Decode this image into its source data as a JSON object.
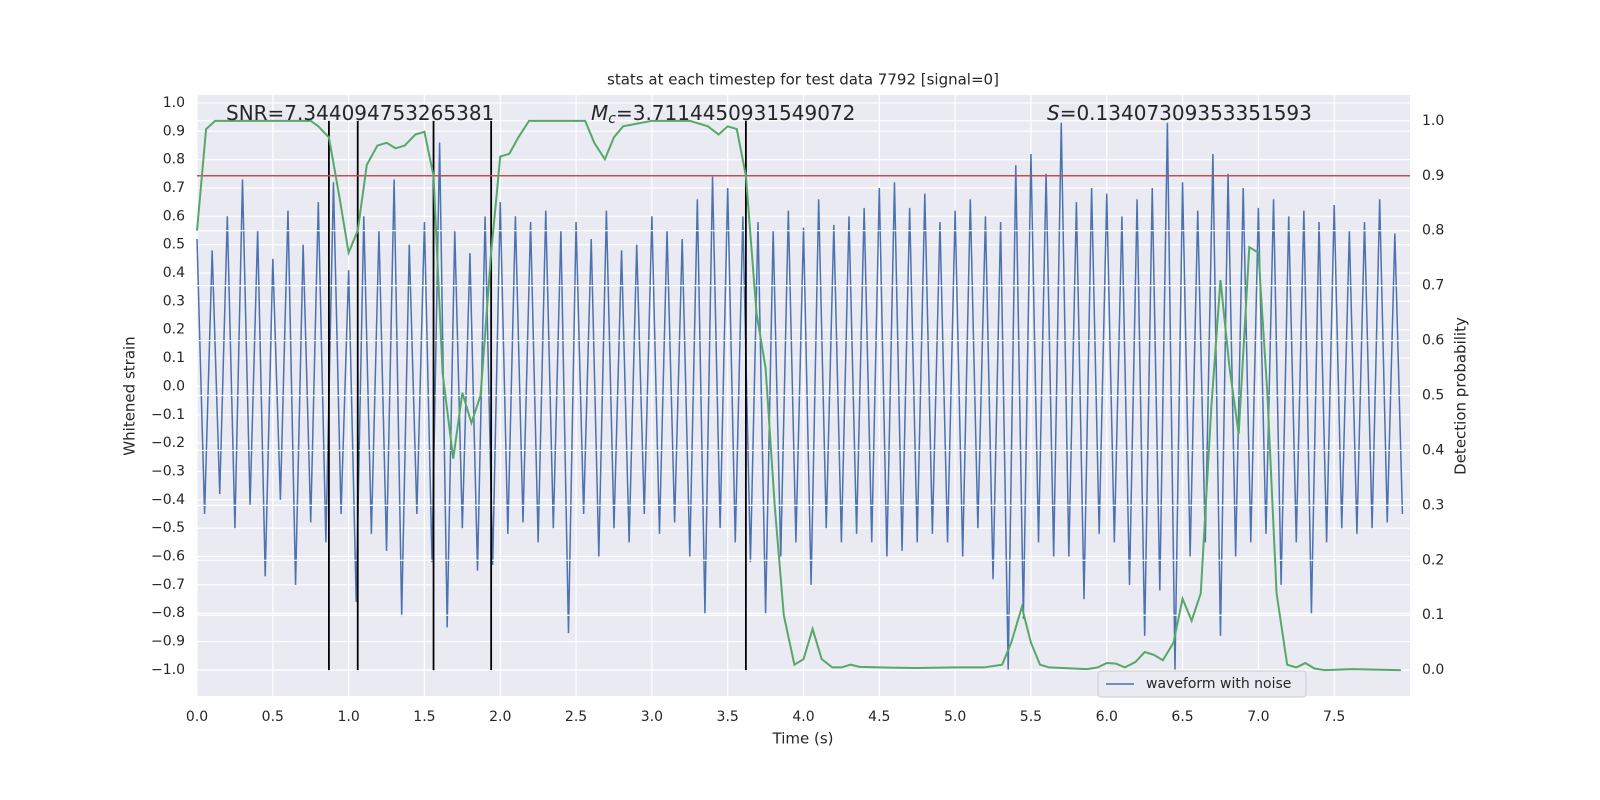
{
  "chart_data": {
    "type": "line",
    "title": "stats at each timestep for test data 7792 [signal=0]",
    "xlabel": "Time (s)",
    "ylabel": "Whitened strain",
    "y2label": "Detection probability",
    "annotations": [
      {
        "text": "SNR=7.344094753265381"
      },
      {
        "symbol": "M",
        "subscript": "c",
        "text": "=3.7114450931549072"
      },
      {
        "symbol": "S",
        "text": "=0.13407309353351593"
      }
    ],
    "xlim": [
      0,
      8.0
    ],
    "ylim": [
      -1.092,
      1.028
    ],
    "y2lim": [
      -0.047,
      1.047
    ],
    "xticks": [
      {
        "value": 0,
        "label": "0.0"
      },
      {
        "value": 0.5,
        "label": "0.5"
      },
      {
        "value": 1,
        "label": "1.0"
      },
      {
        "value": 1.5,
        "label": "1.5"
      },
      {
        "value": 2,
        "label": "2.0"
      },
      {
        "value": 2.5,
        "label": "2.5"
      },
      {
        "value": 3,
        "label": "3.0"
      },
      {
        "value": 3.5,
        "label": "3.5"
      },
      {
        "value": 4,
        "label": "4.0"
      },
      {
        "value": 4.5,
        "label": "4.5"
      },
      {
        "value": 5,
        "label": "5.0"
      },
      {
        "value": 5.5,
        "label": "5.5"
      },
      {
        "value": 6,
        "label": "6.0"
      },
      {
        "value": 6.5,
        "label": "6.5"
      },
      {
        "value": 7,
        "label": "7.0"
      },
      {
        "value": 7.5,
        "label": "7.5"
      }
    ],
    "yticks": [
      {
        "value": -1,
        "label": "−1.0"
      },
      {
        "value": -0.9,
        "label": "−0.9"
      },
      {
        "value": -0.8,
        "label": "−0.8"
      },
      {
        "value": -0.7,
        "label": "−0.7"
      },
      {
        "value": -0.6,
        "label": "−0.6"
      },
      {
        "value": -0.5,
        "label": "−0.5"
      },
      {
        "value": -0.4,
        "label": "−0.4"
      },
      {
        "value": -0.3,
        "label": "−0.3"
      },
      {
        "value": -0.2,
        "label": "−0.2"
      },
      {
        "value": -0.1,
        "label": "−0.1"
      },
      {
        "value": 0,
        "label": "0.0"
      },
      {
        "value": 0.1,
        "label": "0.1"
      },
      {
        "value": 0.2,
        "label": "0.2"
      },
      {
        "value": 0.3,
        "label": "0.3"
      },
      {
        "value": 0.4,
        "label": "0.4"
      },
      {
        "value": 0.5,
        "label": "0.5"
      },
      {
        "value": 0.6,
        "label": "0.6"
      },
      {
        "value": 0.7,
        "label": "0.7"
      },
      {
        "value": 0.8,
        "label": "0.8"
      },
      {
        "value": 0.9,
        "label": "0.9"
      },
      {
        "value": 1,
        "label": "1.0"
      }
    ],
    "y2ticks": [
      {
        "value": 0,
        "label": "0.0"
      },
      {
        "value": 0.1,
        "label": "0.1"
      },
      {
        "value": 0.2,
        "label": "0.2"
      },
      {
        "value": 0.3,
        "label": "0.3"
      },
      {
        "value": 0.4,
        "label": "0.4"
      },
      {
        "value": 0.5,
        "label": "0.5"
      },
      {
        "value": 0.6,
        "label": "0.6"
      },
      {
        "value": 0.7,
        "label": "0.7"
      },
      {
        "value": 0.8,
        "label": "0.8"
      },
      {
        "value": 0.9,
        "label": "0.9"
      },
      {
        "value": 1,
        "label": "1.0"
      }
    ],
    "grid": true,
    "legend": "lower right",
    "threshold": 0.9,
    "threshold_color": "#c44e52",
    "vlines": [
      0.87,
      1.06,
      1.56,
      1.94,
      3.62
    ],
    "vline_color": "#000000",
    "series": [
      {
        "name": "waveform with noise",
        "color": "#4c72b0",
        "x": [
          0,
          0.05,
          0.1,
          0.15,
          0.2,
          0.25,
          0.3,
          0.35,
          0.4,
          0.45,
          0.5,
          0.55,
          0.6,
          0.65,
          0.7,
          0.75,
          0.8,
          0.85,
          0.9,
          0.95,
          1,
          1.05,
          1.1,
          1.15,
          1.2,
          1.25,
          1.3,
          1.35,
          1.4,
          1.45,
          1.5,
          1.55,
          1.6,
          1.65,
          1.7,
          1.75,
          1.8,
          1.85,
          1.9,
          1.95,
          2,
          2.05,
          2.1,
          2.15,
          2.2,
          2.25,
          2.3,
          2.35,
          2.4,
          2.45,
          2.5,
          2.55,
          2.6,
          2.65,
          2.7,
          2.75,
          2.8,
          2.85,
          2.9,
          2.95,
          3,
          3.05,
          3.1,
          3.15,
          3.2,
          3.25,
          3.3,
          3.35,
          3.4,
          3.45,
          3.5,
          3.55,
          3.6,
          3.65,
          3.7,
          3.75,
          3.8,
          3.85,
          3.9,
          3.95,
          4,
          4.05,
          4.1,
          4.15,
          4.2,
          4.25,
          4.3,
          4.35,
          4.4,
          4.45,
          4.5,
          4.55,
          4.6,
          4.65,
          4.7,
          4.75,
          4.8,
          4.85,
          4.9,
          4.95,
          5,
          5.05,
          5.1,
          5.15,
          5.2,
          5.25,
          5.3,
          5.35,
          5.4,
          5.45,
          5.5,
          5.55,
          5.6,
          5.65,
          5.7,
          5.75,
          5.8,
          5.85,
          5.9,
          5.95,
          6,
          6.05,
          6.1,
          6.15,
          6.2,
          6.25,
          6.3,
          6.35,
          6.4,
          6.45,
          6.5,
          6.55,
          6.6,
          6.65,
          6.7,
          6.75,
          6.8,
          6.85,
          6.9,
          6.95,
          7,
          7.05,
          7.1,
          7.15,
          7.2,
          7.25,
          7.3,
          7.35,
          7.4,
          7.45,
          7.5,
          7.55,
          7.6,
          7.65,
          7.7,
          7.75,
          7.8,
          7.85,
          7.9,
          7.95
        ],
        "values": [
          0.52,
          -0.45,
          0.48,
          -0.38,
          0.6,
          -0.5,
          0.73,
          -0.42,
          0.55,
          -0.67,
          0.45,
          -0.4,
          0.62,
          -0.7,
          0.5,
          -0.48,
          0.65,
          -0.55,
          0.72,
          -0.45,
          0.41,
          -0.76,
          0.6,
          -0.52,
          0.55,
          -0.58,
          0.73,
          -0.81,
          0.5,
          -0.45,
          0.58,
          -0.62,
          0.86,
          -0.85,
          0.55,
          -0.5,
          0.47,
          -0.65,
          0.6,
          -0.63,
          0.65,
          -0.52,
          0.6,
          -0.48,
          0.58,
          -0.55,
          0.62,
          -0.5,
          0.55,
          -0.87,
          0.58,
          -0.45,
          0.52,
          -0.6,
          0.62,
          -0.5,
          0.48,
          -0.55,
          0.5,
          -0.45,
          0.6,
          -0.52,
          0.55,
          -0.48,
          0.52,
          -0.6,
          0.66,
          -0.8,
          0.74,
          -0.5,
          0.7,
          -0.55,
          0.6,
          -0.62,
          0.58,
          -0.8,
          0.55,
          -0.6,
          0.62,
          -0.55,
          0.56,
          -0.7,
          0.66,
          -0.5,
          0.57,
          -0.55,
          0.6,
          -0.52,
          0.63,
          -0.55,
          0.7,
          -0.6,
          0.72,
          -0.58,
          0.63,
          -0.55,
          0.68,
          -0.52,
          0.58,
          -0.55,
          0.62,
          -0.6,
          0.66,
          -0.5,
          0.6,
          -0.68,
          0.58,
          -1.0,
          0.78,
          -0.82,
          0.82,
          -0.55,
          0.75,
          -0.6,
          0.93,
          -0.6,
          0.65,
          -0.75,
          0.7,
          -0.52,
          0.68,
          -0.55,
          0.6,
          -0.7,
          0.66,
          -0.88,
          0.7,
          -0.72,
          0.93,
          -1.0,
          0.72,
          -0.6,
          0.62,
          -0.55,
          0.82,
          -0.88,
          0.75,
          -0.6,
          0.7,
          -0.55,
          0.63,
          -0.52,
          0.66,
          -0.7,
          0.6,
          -0.55,
          0.62,
          -0.8,
          0.58,
          -0.55,
          0.64,
          -0.5,
          0.55,
          -0.52,
          0.58,
          -0.5,
          0.66,
          -0.48,
          0.54,
          -0.45
        ]
      },
      {
        "color": "#55a868",
        "axis": "y2",
        "x": [
          0,
          0.06,
          0.12,
          0.5,
          0.75,
          0.8,
          0.87,
          0.94,
          1,
          1.06,
          1.12,
          1.19,
          1.25,
          1.31,
          1.37,
          1.44,
          1.5,
          1.56,
          1.62,
          1.69,
          1.75,
          1.81,
          1.87,
          1.94,
          2,
          2.06,
          2.12,
          2.19,
          2.25,
          2.5,
          2.56,
          2.62,
          2.69,
          2.75,
          2.81,
          3,
          3.25,
          3.37,
          3.44,
          3.5,
          3.56,
          3.62,
          3.69,
          3.75,
          3.81,
          3.87,
          3.94,
          4,
          4.06,
          4.12,
          4.19,
          4.25,
          4.31,
          4.37,
          4.5,
          4.75,
          5,
          5.19,
          5.31,
          5.37,
          5.44,
          5.5,
          5.56,
          5.62,
          5.87,
          5.94,
          6,
          6.06,
          6.12,
          6.19,
          6.25,
          6.31,
          6.37,
          6.44,
          6.5,
          6.56,
          6.62,
          6.69,
          6.75,
          6.81,
          6.87,
          6.94,
          7,
          7.06,
          7.12,
          7.19,
          7.25,
          7.31,
          7.37,
          7.44,
          7.62,
          7.94
        ],
        "values": [
          0.8,
          0.985,
          1,
          1,
          1,
          0.99,
          0.97,
          0.86,
          0.76,
          0.8,
          0.92,
          0.955,
          0.96,
          0.95,
          0.955,
          0.975,
          0.98,
          0.9,
          0.54,
          0.385,
          0.505,
          0.45,
          0.5,
          0.76,
          0.935,
          0.94,
          0.97,
          1,
          1,
          1,
          1,
          0.96,
          0.93,
          0.97,
          0.99,
          1,
          1,
          0.99,
          0.975,
          0.99,
          0.985,
          0.9,
          0.65,
          0.55,
          0.3,
          0.1,
          0.01,
          0.02,
          0.075,
          0.02,
          0.005,
          0.005,
          0.01,
          0.006,
          0.005,
          0.004,
          0.005,
          0.005,
          0.01,
          0.05,
          0.115,
          0.05,
          0.01,
          0.005,
          0.002,
          0.005,
          0.013,
          0.012,
          0.005,
          0.015,
          0.033,
          0.028,
          0.018,
          0.05,
          0.13,
          0.09,
          0.14,
          0.48,
          0.71,
          0.55,
          0.43,
          0.77,
          0.76,
          0.5,
          0.14,
          0.01,
          0.005,
          0.013,
          0.003,
          0,
          0.002,
          0
        ]
      }
    ]
  }
}
